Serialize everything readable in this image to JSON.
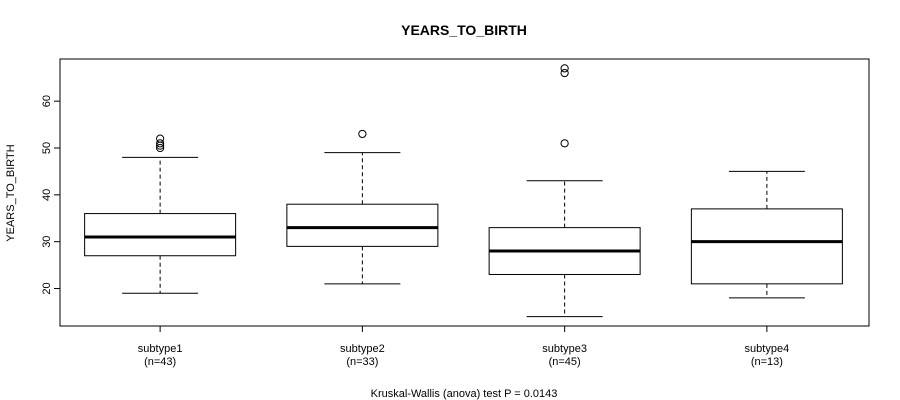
{
  "chart_data": {
    "type": "box",
    "title": "YEARS_TO_BIRTH",
    "ylabel": "YEARS_TO_BIRTH",
    "xlabel": "",
    "ylim": [
      12,
      69
    ],
    "yticks": [
      20,
      30,
      40,
      50,
      60
    ],
    "grid": false,
    "footer": "Kruskal-Wallis (anova) test P = 0.0143",
    "groups": [
      {
        "name": "subtype1",
        "n_label": "(n=43)",
        "whisker_low": 19,
        "q1": 27,
        "median": 31,
        "q3": 36,
        "whisker_high": 48,
        "outliers": [
          50,
          50.5,
          51,
          52
        ]
      },
      {
        "name": "subtype2",
        "n_label": "(n=33)",
        "whisker_low": 21,
        "q1": 29,
        "median": 33,
        "q3": 38,
        "whisker_high": 49,
        "outliers": [
          53
        ]
      },
      {
        "name": "subtype3",
        "n_label": "(n=45)",
        "whisker_low": 14,
        "q1": 23,
        "median": 28,
        "q3": 33,
        "whisker_high": 43,
        "outliers": [
          51,
          66,
          67
        ]
      },
      {
        "name": "subtype4",
        "n_label": "(n=13)",
        "whisker_low": 18,
        "q1": 21,
        "median": 30,
        "q3": 37,
        "whisker_high": 45,
        "outliers": []
      }
    ]
  }
}
